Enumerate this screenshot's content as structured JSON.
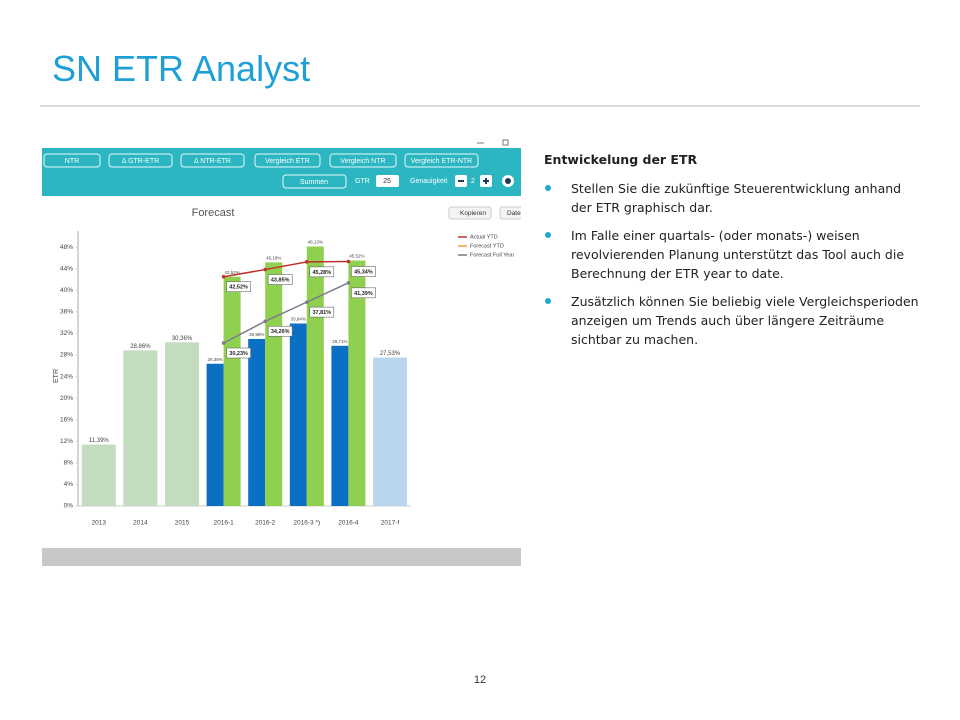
{
  "title": "SN ETR Analyst",
  "toolbar": {
    "buttons": [
      "NTR",
      "Δ GTR-ETR",
      "Δ NTR-ETR",
      "Vergleich ETR",
      "Vergleich NTR",
      "Vergleich ETR-NTR"
    ],
    "summen": "Summen",
    "gtr_label": "GTR",
    "gtr_value": "25",
    "genauigkeit_label": "Genauigkeit",
    "genauigkeit_value": "2"
  },
  "chart_actions": [
    "Kopieren",
    "Dater"
  ],
  "chart_data": {
    "type": "bar",
    "title": "Forecast",
    "y_label": "ETR",
    "categories": [
      "2013",
      "2014",
      "2015",
      "2016-1",
      "2016-2",
      "2016-3 *)",
      "2016-4",
      "2017-f"
    ],
    "ylim": [
      0,
      51
    ],
    "yticks": [
      {
        "value": 0,
        "label": "0%"
      },
      {
        "value": 4,
        "label": "4%"
      },
      {
        "value": 8,
        "label": "8%"
      },
      {
        "value": 12,
        "label": "12%"
      },
      {
        "value": 16,
        "label": "16%"
      },
      {
        "value": 20,
        "label": "20%"
      },
      {
        "value": 24,
        "label": "24%"
      },
      {
        "value": 28,
        "label": "28%"
      },
      {
        "value": 32,
        "label": "32%"
      },
      {
        "value": 36,
        "label": "36%"
      },
      {
        "value": 40,
        "label": "40%"
      },
      {
        "value": 44,
        "label": "44%"
      },
      {
        "value": 48,
        "label": "48%"
      }
    ],
    "grid": false,
    "legend": "top-right",
    "series": [
      {
        "type": "bar",
        "color": "#c3dbbf",
        "values": [
          11.39,
          28.86,
          30.36,
          null,
          null,
          null,
          null,
          null
        ],
        "value_labels": [
          "11,39%",
          "28,86%",
          "30,36%",
          null,
          null,
          null,
          null,
          null
        ]
      },
      {
        "type": "bar",
        "color": "#0b6fc4",
        "values": [
          null,
          null,
          null,
          26.38,
          30.98,
          33.84,
          29.71,
          null
        ],
        "value_labels": [
          null,
          null,
          null,
          "26,38%",
          "30,98%",
          "33,84%",
          "29,71%",
          null
        ]
      },
      {
        "type": "bar",
        "color": "#8fd14f",
        "values": [
          null,
          null,
          null,
          42.52,
          45.18,
          48.13,
          45.52,
          null
        ],
        "value_labels": [
          null,
          null,
          null,
          "42,52%",
          "45,18%",
          "48,13%",
          "45,52%",
          null
        ]
      },
      {
        "type": "bar",
        "color": "#b9d6ee",
        "values": [
          null,
          null,
          null,
          null,
          null,
          null,
          null,
          27.53
        ],
        "value_labels": [
          null,
          null,
          null,
          null,
          null,
          null,
          null,
          "27,53%"
        ]
      },
      {
        "type": "line",
        "name": "Actual YTD",
        "color": "#c0322b",
        "values": [
          null,
          null,
          null,
          42.52,
          43.85,
          45.28,
          45.34,
          null
        ],
        "value_labels": [
          null,
          null,
          null,
          "42,52%",
          "43,85%",
          "45,28%",
          "45,34%",
          null
        ]
      },
      {
        "type": "line",
        "name": "Forecast YTD",
        "color": "#f0a030",
        "values": [
          null,
          null,
          null,
          null,
          null,
          null,
          null,
          null
        ]
      },
      {
        "type": "line",
        "name": "Forecast Full Year",
        "color": "#7d7a8c",
        "values": [
          null,
          null,
          null,
          30.23,
          34.26,
          37.81,
          41.39,
          null
        ],
        "value_labels": [
          null,
          null,
          null,
          "30,23%",
          "34,26%",
          "37,81%",
          "41,39%",
          null
        ]
      }
    ]
  },
  "text_panel": {
    "heading": "Entwickelung der ETR",
    "bullets": [
      "Stellen Sie die zukünftige Steuerentwicklung  anhand der ETR graphisch dar.",
      "Im Falle einer quartals- (oder monats-) weisen revolvierenden Planung unterstützt das Tool auch die Berechnung der ETR year to date.",
      "Zusätzlich können Sie beliebig viele Vergleichsperioden anzeigen um Trends auch über längere Zeiträume sichtbar zu machen."
    ]
  },
  "page_number": "12"
}
